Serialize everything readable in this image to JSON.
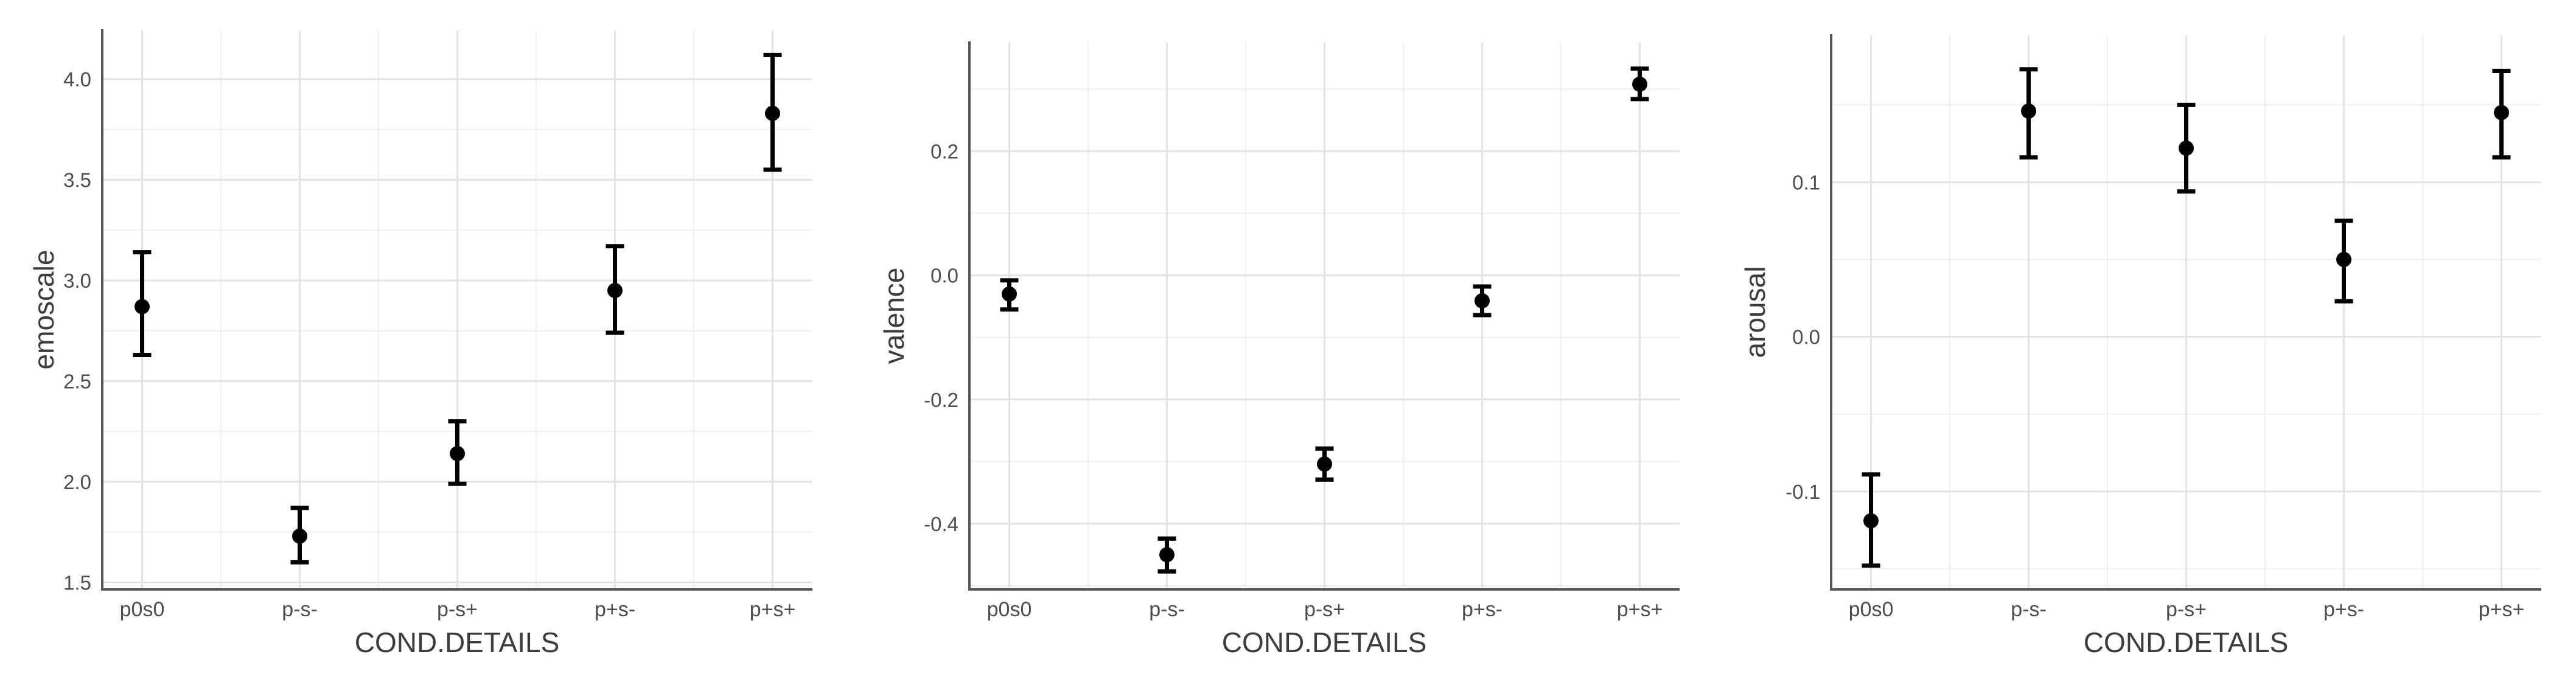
{
  "style": {
    "background": "#ffffff",
    "grid_major_color": "#e3e3e3",
    "grid_minor_color": "#efefef",
    "axis_line_color": "#575757",
    "tick_label_color": "#4d4d4d",
    "axis_title_color": "#3c3c3c",
    "point_color": "#000000"
  },
  "chart_data": [
    {
      "type": "pointrange",
      "panel": "emoscale",
      "xlabel": "COND.DETAILS",
      "ylabel": "emoscale",
      "grid": true,
      "legend": "none",
      "categories": [
        "p0s0",
        "p-s-",
        "p-s+",
        "p+s-",
        "p+s+"
      ],
      "means": [
        2.87,
        1.73,
        2.14,
        2.95,
        3.83
      ],
      "lower": [
        2.63,
        1.6,
        1.99,
        2.74,
        3.55
      ],
      "upper": [
        3.14,
        1.87,
        2.3,
        3.17,
        4.12
      ],
      "ylim": [
        1.468,
        4.242
      ],
      "yticks_major": [
        {
          "value": 1.5,
          "label": "1.5"
        },
        {
          "value": 2.0,
          "label": "2.0"
        },
        {
          "value": 2.5,
          "label": "2.5"
        },
        {
          "value": 3.0,
          "label": "3.0"
        },
        {
          "value": 3.5,
          "label": "3.5"
        },
        {
          "value": 4.0,
          "label": "4.0"
        }
      ],
      "yticks_minor": [
        1.75,
        2.25,
        2.75,
        3.25,
        3.75
      ]
    },
    {
      "type": "pointrange",
      "panel": "valence",
      "xlabel": "COND.DETAILS",
      "ylabel": "valence",
      "grid": true,
      "legend": "none",
      "categories": [
        "p0s0",
        "p-s-",
        "p-s+",
        "p+s-",
        "p+s+"
      ],
      "means": [
        -0.03,
        -0.45,
        -0.304,
        -0.041,
        0.308
      ],
      "lower": [
        -0.055,
        -0.477,
        -0.329,
        -0.064,
        0.284
      ],
      "upper": [
        -0.008,
        -0.424,
        -0.279,
        -0.018,
        0.333
      ],
      "ylim": [
        -0.505,
        0.375
      ],
      "yticks_major": [
        {
          "value": 0.2,
          "label": "0.2"
        },
        {
          "value": 0.0,
          "label": "0.0"
        },
        {
          "value": -0.2,
          "label": "-0.2"
        },
        {
          "value": -0.4,
          "label": "-0.4"
        }
      ],
      "yticks_minor": [
        0.3,
        0.1,
        -0.1,
        -0.3,
        -0.5
      ]
    },
    {
      "type": "pointrange",
      "panel": "arousal",
      "xlabel": "COND.DETAILS",
      "ylabel": "arousal",
      "grid": true,
      "legend": "none",
      "categories": [
        "p0s0",
        "p-s-",
        "p-s+",
        "p+s-",
        "p+s+"
      ],
      "means": [
        -0.119,
        0.146,
        0.122,
        0.05,
        0.145
      ],
      "lower": [
        -0.148,
        0.116,
        0.094,
        0.023,
        0.116
      ],
      "upper": [
        -0.089,
        0.173,
        0.15,
        0.075,
        0.172
      ],
      "ylim": [
        -0.163,
        0.195
      ],
      "yticks_major": [
        {
          "value": 0.1,
          "label": "0.1"
        },
        {
          "value": 0.0,
          "label": "0.0"
        },
        {
          "value": -0.1,
          "label": "-0.1"
        }
      ],
      "yticks_minor": [
        0.15,
        0.05,
        -0.05,
        -0.15
      ]
    }
  ]
}
